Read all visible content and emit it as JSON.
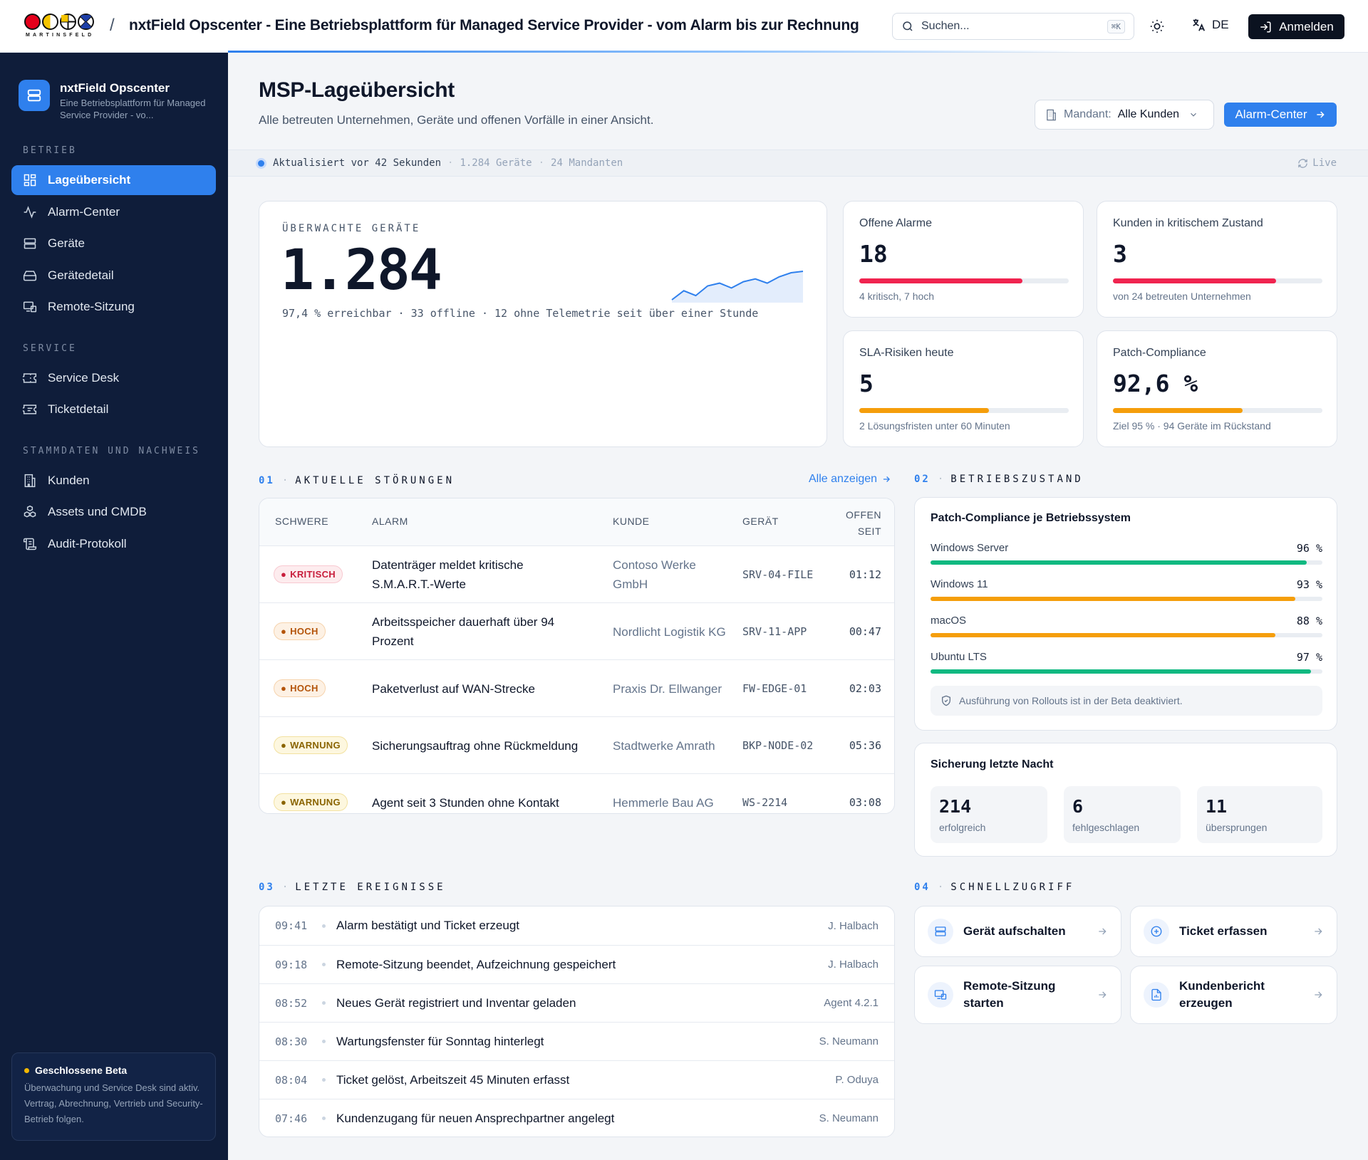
{
  "topbar": {
    "brand": "MARTINSFELD",
    "app_title": "nxtField Opscenter - Eine Betriebsplattform für Managed Service Provider - vom Alarm bis zur Rechnung",
    "search_placeholder": "Suchen...",
    "search_shortcut": "⌘K",
    "lang": "DE",
    "login_label": "Anmelden"
  },
  "sidebar": {
    "app_name": "nxtField Opscenter",
    "app_subtitle": "Eine Betriebsplattform für Managed Service Provider - vo...",
    "sections": [
      {
        "title": "BETRIEB",
        "items": [
          {
            "label": "Lageübersicht",
            "icon": "dashboard-icon",
            "active": true
          },
          {
            "label": "Alarm-Center",
            "icon": "activity-icon"
          },
          {
            "label": "Geräte",
            "icon": "server-icon"
          },
          {
            "label": "Gerätedetail",
            "icon": "hard-drive-icon"
          },
          {
            "label": "Remote-Sitzung",
            "icon": "remote-screen-icon"
          }
        ]
      },
      {
        "title": "SERVICE",
        "items": [
          {
            "label": "Service Desk",
            "icon": "ticket-icon"
          },
          {
            "label": "Ticketdetail",
            "icon": "ticket-detail-icon"
          }
        ]
      },
      {
        "title": "STAMMDATEN UND NACHWEIS",
        "items": [
          {
            "label": "Kunden",
            "icon": "building-icon"
          },
          {
            "label": "Assets und CMDB",
            "icon": "boxes-icon"
          },
          {
            "label": "Audit-Protokoll",
            "icon": "scroll-icon"
          }
        ]
      }
    ],
    "beta": {
      "title": "Geschlossene Beta",
      "text": "Überwachung und Service Desk sind aktiv. Vertrag, Abrechnung, Vertrieb und Security-Betrieb folgen."
    }
  },
  "header": {
    "title": "MSP-Lageübersicht",
    "subtitle": "Alle betreuten Unternehmen, Geräte und offenen Vorfälle in einer Ansicht.",
    "mandant_label": "Mandant:",
    "mandant_value": "Alle Kunden",
    "alarm_button": "Alarm-Center"
  },
  "status": {
    "updated": "Aktualisiert vor 42 Sekunden",
    "devices": "1.284 Geräte",
    "tenants": "24 Mandanten",
    "live": "Live"
  },
  "devices_card": {
    "label": "ÜBERWACHTE GERÄTE",
    "value": "1.284",
    "sub": "97,4 % erreichbar · 33 offline · 12 ohne Telemetrie seit über einer Stunde",
    "trend": [
      14,
      27,
      20,
      34,
      38,
      31,
      40,
      44,
      38,
      47,
      53,
      55
    ]
  },
  "kpis": [
    {
      "label": "Offene Alarme",
      "value": "18",
      "sub": "4 kritisch, 7 hoch",
      "fill": 0.78,
      "color": "#f0244f"
    },
    {
      "label": "Kunden in kritischem Zustand",
      "value": "3",
      "sub": "von 24 betreuten Unternehmen",
      "fill": 0.78,
      "color": "#f0244f"
    },
    {
      "label": "SLA-Risiken heute",
      "value": "5",
      "sub": "2 Lösungsfristen unter 60 Minuten",
      "fill": 0.62,
      "color": "#f59e0b"
    },
    {
      "label": "Patch-Compliance",
      "value": "92,6 %",
      "sub": "Ziel 95 % · 94 Geräte im Rückstand",
      "fill": 0.62,
      "color": "#f59e0b"
    }
  ],
  "incidents": {
    "num": "01",
    "title": "AKTUELLE STÖRUNGEN",
    "link": "Alle anzeigen",
    "headers": [
      "SCHWERE",
      "ALARM",
      "KUNDE",
      "GERÄT",
      "OFFEN SEIT"
    ],
    "rows": [
      {
        "sev": "KRITISCH",
        "cls": "b-crit",
        "alarm": "Datenträger meldet kritische S.M.A.R.T.-Werte",
        "customer": "Contoso Werke GmbH",
        "device": "SRV-04-FILE",
        "open": "01:12"
      },
      {
        "sev": "HOCH",
        "cls": "b-hoch",
        "alarm": "Arbeitsspeicher dauerhaft über 94 Prozent",
        "customer": "Nordlicht Logistik KG",
        "device": "SRV-11-APP",
        "open": "00:47"
      },
      {
        "sev": "HOCH",
        "cls": "b-hoch",
        "alarm": "Paketverlust auf WAN-Strecke",
        "customer": "Praxis Dr. Ellwanger",
        "device": "FW-EDGE-01",
        "open": "02:03"
      },
      {
        "sev": "WARNUNG",
        "cls": "b-warn",
        "alarm": "Sicherungsauftrag ohne Rückmeldung",
        "customer": "Stadtwerke Amrath",
        "device": "BKP-NODE-02",
        "open": "05:36"
      },
      {
        "sev": "WARNUNG",
        "cls": "b-warn",
        "alarm": "Agent seit 3 Stunden ohne Kontakt",
        "customer": "Hemmerle Bau AG",
        "device": "WS-2214",
        "open": "03:08"
      }
    ]
  },
  "health": {
    "num": "02",
    "title": "BETRIEBSZUSTAND",
    "patch_title": "Patch-Compliance je Betriebssystem",
    "os": [
      {
        "name": "Windows Server",
        "value": "96 %",
        "pct": 0.96,
        "color": "#10b981"
      },
      {
        "name": "Windows 11",
        "value": "93 %",
        "pct": 0.93,
        "color": "#f59e0b"
      },
      {
        "name": "macOS",
        "value": "88 %",
        "pct": 0.88,
        "color": "#f59e0b"
      },
      {
        "name": "Ubuntu LTS",
        "value": "97 %",
        "pct": 0.97,
        "color": "#10b981"
      }
    ],
    "note": "Ausführung von Rollouts ist in der Beta deaktiviert.",
    "backup_title": "Sicherung letzte Nacht",
    "backup": [
      {
        "value": "214",
        "label": "erfolgreich"
      },
      {
        "value": "6",
        "label": "fehlgeschlagen"
      },
      {
        "value": "11",
        "label": "übersprungen"
      }
    ]
  },
  "events": {
    "num": "03",
    "title": "LETZTE EREIGNISSE",
    "rows": [
      {
        "time": "09:41",
        "text": "Alarm bestätigt und Ticket erzeugt",
        "by": "J. Halbach"
      },
      {
        "time": "09:18",
        "text": "Remote-Sitzung beendet, Aufzeichnung gespeichert",
        "by": "J. Halbach"
      },
      {
        "time": "08:52",
        "text": "Neues Gerät registriert und Inventar geladen",
        "by": "Agent 4.2.1"
      },
      {
        "time": "08:30",
        "text": "Wartungsfenster für Sonntag hinterlegt",
        "by": "S. Neumann"
      },
      {
        "time": "08:04",
        "text": "Ticket gelöst, Arbeitszeit 45 Minuten erfasst",
        "by": "P. Oduya"
      },
      {
        "time": "07:46",
        "text": "Kundenzugang für neuen Ansprechpartner angelegt",
        "by": "S. Neumann"
      }
    ]
  },
  "quick": {
    "num": "04",
    "title": "SCHNELLZUGRIFF",
    "items": [
      {
        "label": "Gerät aufschalten",
        "icon": "server-icon"
      },
      {
        "label": "Ticket erfassen",
        "icon": "plus-circle-icon"
      },
      {
        "label": "Remote-Sitzung starten",
        "icon": "remote-screen-icon"
      },
      {
        "label": "Kundenbericht erzeugen",
        "icon": "report-icon"
      }
    ]
  }
}
